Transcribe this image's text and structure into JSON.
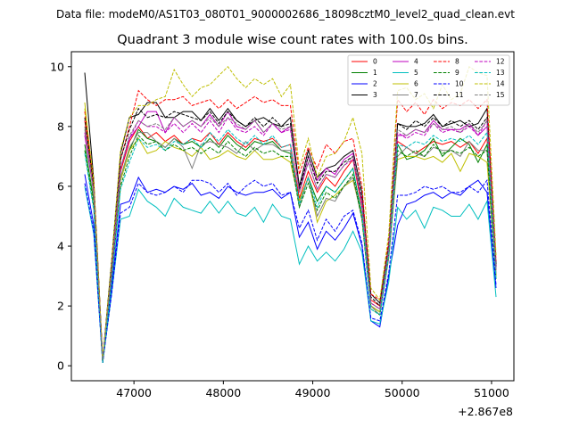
{
  "chart_data": {
    "type": "line",
    "suptitle": "Data file: modeM0/AS1T03_080T01_9000002686_18098cztM0_level2_quad_clean.evt",
    "title": "Quadrant 3 module wise count rates with 100.0s bins.",
    "xlabel": "",
    "ylabel": "",
    "x_offset_label": "+2.867e8",
    "xlim": [
      46300,
      51250
    ],
    "ylim": [
      -0.5,
      10.5
    ],
    "x_ticks": [
      47000,
      48000,
      49000,
      50000,
      51000
    ],
    "y_ticks": [
      0,
      2,
      4,
      6,
      8,
      10
    ],
    "x_tick_labels": [
      "47000",
      "48000",
      "49000",
      "50000",
      "51000"
    ],
    "y_tick_labels": [
      "0",
      "2",
      "4",
      "6",
      "8",
      "10"
    ],
    "legend_position": "top-right",
    "x": [
      46450,
      46550,
      46650,
      46750,
      46850,
      46950,
      47050,
      47150,
      47250,
      47350,
      47450,
      47550,
      47650,
      47750,
      47850,
      47950,
      48050,
      48150,
      48250,
      48350,
      48450,
      48550,
      48650,
      48750,
      48850,
      48950,
      49050,
      49150,
      49250,
      49350,
      49450,
      49550,
      49650,
      49750,
      49850,
      49950,
      50050,
      50150,
      50250,
      50350,
      50450,
      50550,
      50650,
      50750,
      50850,
      50950,
      51050
    ],
    "series": [
      {
        "name": "0",
        "color": "#ff0000",
        "dash": "solid",
        "values": [
          8.2,
          6.0,
          0.2,
          3.0,
          6.5,
          7.5,
          8.0,
          7.6,
          7.8,
          7.5,
          7.7,
          7.4,
          7.6,
          7.5,
          7.8,
          7.4,
          7.8,
          7.5,
          7.3,
          7.6,
          7.5,
          7.6,
          7.3,
          7.4,
          5.6,
          6.5,
          5.8,
          6.3,
          6.0,
          6.5,
          6.9,
          5.3,
          2.2,
          2.0,
          4.0,
          7.5,
          7.3,
          7.1,
          7.3,
          7.5,
          7.4,
          7.5,
          7.3,
          7.5,
          7.1,
          7.6,
          3.2
        ]
      },
      {
        "name": "1",
        "color": "#008000",
        "dash": "solid",
        "values": [
          7.4,
          5.5,
          0.1,
          3.0,
          6.2,
          7.2,
          7.9,
          7.6,
          7.5,
          7.3,
          7.6,
          7.4,
          7.5,
          7.3,
          7.6,
          7.3,
          7.7,
          7.4,
          7.2,
          7.5,
          7.4,
          7.5,
          7.2,
          7.1,
          5.5,
          6.3,
          5.5,
          6.0,
          5.8,
          6.2,
          6.6,
          5.0,
          2.0,
          1.8,
          3.8,
          7.4,
          6.9,
          7.0,
          7.2,
          7.6,
          7.0,
          7.3,
          7.6,
          7.4,
          6.8,
          7.4,
          3.0
        ]
      },
      {
        "name": "2",
        "color": "#0000ff",
        "dash": "solid",
        "values": [
          6.4,
          4.7,
          0.1,
          2.6,
          5.4,
          5.5,
          6.3,
          5.8,
          5.9,
          5.8,
          6.0,
          5.9,
          6.1,
          5.7,
          5.8,
          5.6,
          6.0,
          5.8,
          5.7,
          5.8,
          5.8,
          5.9,
          5.6,
          5.8,
          4.3,
          4.8,
          3.9,
          4.5,
          4.2,
          4.6,
          5.1,
          4.0,
          1.5,
          1.3,
          3.0,
          4.7,
          5.4,
          5.5,
          5.7,
          5.8,
          5.6,
          5.8,
          5.7,
          6.0,
          6.2,
          5.8,
          2.6
        ]
      },
      {
        "name": "3",
        "color": "#000000",
        "dash": "solid",
        "values": [
          9.8,
          6.2,
          0.2,
          3.5,
          7.1,
          8.3,
          8.4,
          8.8,
          8.8,
          8.3,
          8.3,
          8.5,
          8.5,
          8.2,
          8.6,
          8.2,
          8.6,
          8.2,
          8.0,
          8.2,
          8.3,
          8.1,
          8.0,
          8.3,
          6.0,
          7.2,
          6.3,
          6.6,
          6.7,
          7.0,
          7.2,
          5.8,
          2.4,
          2.1,
          4.0,
          8.1,
          8.0,
          8.0,
          8.1,
          8.4,
          8.0,
          8.1,
          8.2,
          8.0,
          8.1,
          8.6,
          3.4
        ]
      },
      {
        "name": "4",
        "color": "#bf00bf",
        "dash": "solid",
        "values": [
          7.7,
          5.8,
          0.2,
          3.0,
          6.6,
          7.6,
          8.0,
          8.5,
          8.5,
          7.8,
          8.3,
          8.0,
          8.2,
          8.0,
          8.4,
          8.0,
          8.5,
          8.0,
          7.9,
          8.2,
          7.8,
          8.1,
          7.8,
          8.0,
          5.8,
          7.0,
          6.2,
          6.6,
          6.4,
          6.9,
          7.1,
          5.4,
          2.1,
          1.9,
          3.8,
          7.7,
          7.7,
          7.9,
          7.8,
          8.2,
          7.9,
          7.9,
          7.9,
          8.1,
          7.7,
          8.0,
          3.2
        ]
      },
      {
        "name": "5",
        "color": "#00bfbf",
        "dash": "solid",
        "values": [
          6.0,
          4.4,
          0.1,
          2.4,
          4.9,
          5.0,
          5.9,
          5.5,
          5.3,
          5.0,
          5.6,
          5.3,
          5.2,
          5.1,
          5.5,
          5.1,
          5.5,
          5.1,
          5.0,
          5.3,
          4.8,
          5.4,
          5.0,
          4.9,
          3.4,
          4.0,
          3.5,
          3.8,
          3.5,
          3.9,
          4.5,
          3.8,
          1.5,
          1.4,
          2.8,
          5.3,
          4.9,
          5.2,
          4.6,
          5.3,
          5.2,
          5.0,
          5.0,
          5.4,
          4.9,
          5.5,
          2.3
        ]
      },
      {
        "name": "6",
        "color": "#bfbf00",
        "dash": "solid",
        "values": [
          8.8,
          5.9,
          0.1,
          3.0,
          6.2,
          7.2,
          7.6,
          7.1,
          7.2,
          7.5,
          7.3,
          7.2,
          7.0,
          7.3,
          6.9,
          7.0,
          7.2,
          7.0,
          6.9,
          7.2,
          6.9,
          6.9,
          7.0,
          6.8,
          5.5,
          6.3,
          4.8,
          5.5,
          5.7,
          6.0,
          6.2,
          5.0,
          2.0,
          1.8,
          3.6,
          6.9,
          7.0,
          7.0,
          6.9,
          7.0,
          6.8,
          7.1,
          6.5,
          7.1,
          7.0,
          6.8,
          3.0
        ]
      },
      {
        "name": "7",
        "color": "#808080",
        "dash": "solid",
        "values": [
          8.0,
          5.7,
          0.1,
          3.0,
          6.3,
          7.3,
          7.8,
          7.8,
          7.5,
          7.3,
          7.6,
          7.3,
          6.6,
          7.4,
          7.5,
          7.4,
          7.3,
          7.1,
          7.5,
          7.2,
          7.4,
          7.4,
          7.2,
          7.2,
          5.3,
          6.3,
          5.0,
          5.6,
          5.5,
          6.0,
          6.3,
          4.9,
          2.0,
          1.7,
          3.6,
          7.0,
          7.3,
          7.1,
          7.0,
          7.3,
          7.2,
          7.2,
          7.0,
          7.5,
          7.2,
          7.2,
          3.1
        ]
      },
      {
        "name": "8",
        "color": "#ff0000",
        "dash": "dashed",
        "values": [
          8.5,
          6.1,
          0.2,
          3.3,
          6.9,
          8.0,
          9.2,
          8.9,
          8.7,
          8.9,
          8.9,
          9.0,
          8.7,
          8.8,
          8.9,
          8.6,
          8.9,
          8.6,
          8.8,
          9.0,
          8.8,
          8.9,
          8.7,
          8.7,
          6.4,
          7.3,
          6.6,
          7.4,
          7.1,
          7.5,
          7.6,
          6.0,
          2.4,
          2.2,
          4.2,
          8.9,
          8.5,
          8.8,
          8.4,
          8.9,
          8.6,
          8.8,
          8.7,
          8.9,
          8.6,
          8.9,
          3.5
        ]
      },
      {
        "name": "9",
        "color": "#008000",
        "dash": "dashed",
        "values": [
          7.2,
          5.3,
          0.1,
          2.9,
          6.0,
          7.0,
          7.7,
          7.4,
          7.5,
          7.2,
          7.4,
          7.2,
          7.3,
          7.1,
          7.3,
          7.1,
          7.5,
          7.2,
          7.0,
          7.3,
          7.1,
          7.2,
          7.0,
          7.0,
          5.3,
          6.1,
          5.2,
          5.8,
          5.6,
          6.0,
          6.4,
          4.9,
          1.9,
          1.7,
          3.7,
          7.2,
          7.0,
          7.2,
          7.0,
          7.4,
          7.1,
          7.2,
          7.1,
          7.3,
          7.0,
          7.2,
          2.9
        ]
      },
      {
        "name": "10",
        "color": "#0000ff",
        "dash": "dashed",
        "values": [
          6.1,
          4.5,
          0.1,
          2.4,
          5.1,
          5.3,
          6.1,
          5.8,
          5.7,
          5.8,
          6.0,
          5.8,
          6.2,
          6.2,
          6.1,
          5.8,
          6.1,
          5.7,
          6.0,
          6.2,
          6.0,
          6.1,
          5.7,
          5.8,
          4.6,
          5.2,
          4.2,
          4.9,
          4.5,
          5.0,
          5.2,
          4.1,
          1.6,
          1.5,
          3.1,
          5.7,
          5.7,
          5.8,
          6.0,
          5.9,
          6.0,
          5.8,
          5.8,
          6.0,
          5.8,
          6.2,
          2.7
        ]
      },
      {
        "name": "11",
        "color": "#000000",
        "dash": "dashed",
        "values": [
          8.3,
          6.0,
          0.2,
          3.4,
          6.9,
          7.9,
          8.6,
          8.3,
          8.4,
          8.3,
          8.5,
          8.4,
          8.3,
          8.2,
          8.5,
          8.1,
          8.5,
          8.2,
          8.0,
          8.3,
          8.0,
          8.3,
          8.0,
          8.1,
          5.9,
          7.0,
          6.1,
          6.5,
          6.5,
          6.8,
          7.0,
          5.6,
          2.3,
          2.0,
          4.0,
          8.1,
          7.9,
          8.2,
          8.0,
          8.3,
          8.0,
          8.2,
          8.0,
          8.2,
          7.9,
          8.3,
          3.3
        ]
      },
      {
        "name": "12",
        "color": "#bf00bf",
        "dash": "dashed",
        "values": [
          7.8,
          5.8,
          0.2,
          3.1,
          6.6,
          7.6,
          8.2,
          8.0,
          8.0,
          7.8,
          8.1,
          7.8,
          8.1,
          7.8,
          8.2,
          7.8,
          8.3,
          7.9,
          7.8,
          8.0,
          7.7,
          8.1,
          7.8,
          7.9,
          5.8,
          6.8,
          5.9,
          6.4,
          6.3,
          6.7,
          6.9,
          5.5,
          2.1,
          1.9,
          3.9,
          7.8,
          7.6,
          7.8,
          7.7,
          8.1,
          7.8,
          7.9,
          7.8,
          8.0,
          7.7,
          8.2,
          3.2
        ]
      },
      {
        "name": "13",
        "color": "#00bfbf",
        "dash": "dashed",
        "values": [
          7.1,
          5.2,
          0.1,
          2.8,
          5.9,
          6.8,
          7.6,
          7.3,
          7.4,
          7.2,
          7.5,
          7.4,
          7.6,
          7.3,
          7.8,
          7.5,
          7.9,
          7.6,
          7.4,
          7.7,
          7.4,
          7.7,
          7.3,
          7.4,
          5.4,
          6.3,
          5.3,
          6.0,
          5.8,
          6.2,
          6.6,
          5.1,
          1.9,
          1.7,
          3.7,
          7.4,
          7.3,
          7.5,
          7.4,
          7.7,
          7.5,
          7.6,
          7.5,
          7.7,
          7.4,
          7.8,
          2.9
        ]
      },
      {
        "name": "14",
        "color": "#bfbf00",
        "dash": "dashed",
        "values": [
          8.6,
          6.2,
          0.2,
          3.5,
          7.2,
          8.3,
          8.7,
          8.7,
          8.9,
          9.0,
          9.9,
          9.4,
          9.0,
          9.3,
          9.4,
          9.7,
          10.0,
          9.6,
          9.3,
          9.6,
          9.4,
          9.6,
          9.0,
          9.4,
          6.6,
          7.6,
          6.3,
          7.0,
          7.1,
          7.5,
          8.3,
          7.1,
          2.6,
          2.2,
          4.4,
          9.2,
          9.3,
          8.9,
          9.1,
          8.6,
          9.4,
          8.9,
          9.1,
          10.0,
          9.8,
          9.7,
          3.7
        ]
      },
      {
        "name": "15",
        "color": "#808080",
        "dash": "dashed",
        "values": [
          7.9,
          5.8,
          0.2,
          3.2,
          6.6,
          7.7,
          8.2,
          8.0,
          8.1,
          7.9,
          8.3,
          8.0,
          8.2,
          8.0,
          8.3,
          8.0,
          8.3,
          8.1,
          7.9,
          8.2,
          7.8,
          8.1,
          7.9,
          8.0,
          5.8,
          6.8,
          5.9,
          6.4,
          6.3,
          6.7,
          7.0,
          5.5,
          2.1,
          1.9,
          3.9,
          7.9,
          7.7,
          7.9,
          7.8,
          8.1,
          7.9,
          8.0,
          7.8,
          8.1,
          7.8,
          8.2,
          3.2
        ]
      }
    ]
  }
}
